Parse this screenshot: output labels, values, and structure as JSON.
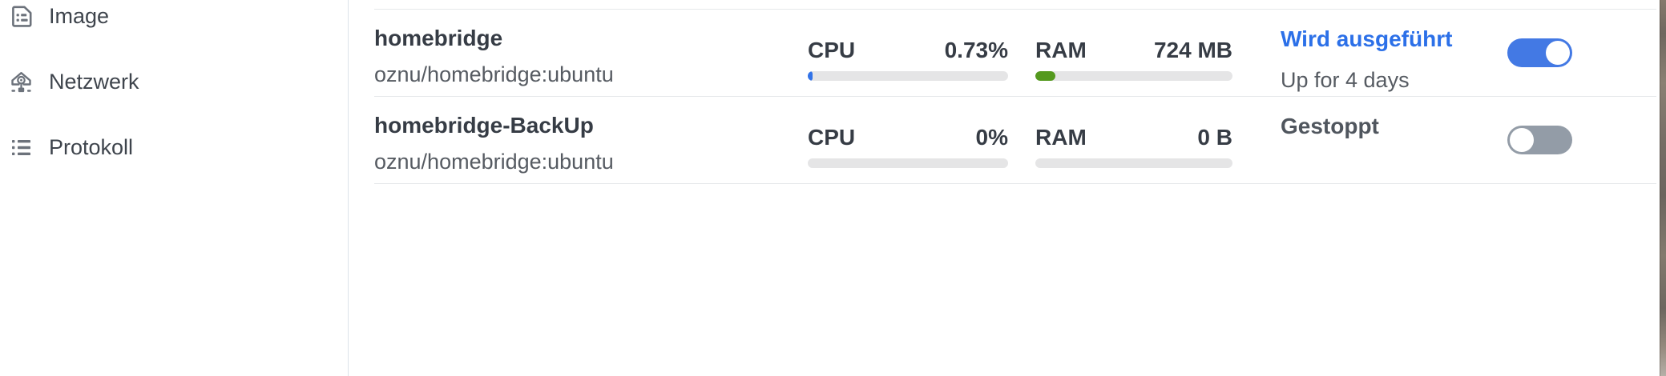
{
  "sidebar": {
    "items": [
      {
        "label": "Image",
        "icon": "image-file-icon"
      },
      {
        "label": "Netzwerk",
        "icon": "network-icon"
      },
      {
        "label": "Protokoll",
        "icon": "log-list-icon"
      }
    ]
  },
  "containers": [
    {
      "name": "homebridge",
      "image": "oznu/homebridge:ubuntu",
      "cpu": {
        "label": "CPU",
        "value": "0.73%",
        "bar_percent": 0.73
      },
      "ram": {
        "label": "RAM",
        "value": "724 MB",
        "bar_percent": 10
      },
      "status": {
        "text": "Wird ausgeführt",
        "running": true,
        "uptime": "Up for 4 days"
      },
      "toggle_on": true
    },
    {
      "name": "homebridge-BackUp",
      "image": "oznu/homebridge:ubuntu",
      "cpu": {
        "label": "CPU",
        "value": "0%",
        "bar_percent": 0
      },
      "ram": {
        "label": "RAM",
        "value": "0 B",
        "bar_percent": 0
      },
      "status": {
        "text": "Gestoppt",
        "running": false,
        "uptime": ""
      },
      "toggle_on": false
    }
  ],
  "colors": {
    "accent_blue": "#2c70e8",
    "toggle_blue": "#4379e4",
    "toggle_gray": "#939ca7",
    "ram_green": "#54991e",
    "cpu_blue": "#3273e8",
    "bar_track": "#e5e5e6",
    "text_dark": "#363c45",
    "text_gray": "#565b62"
  }
}
